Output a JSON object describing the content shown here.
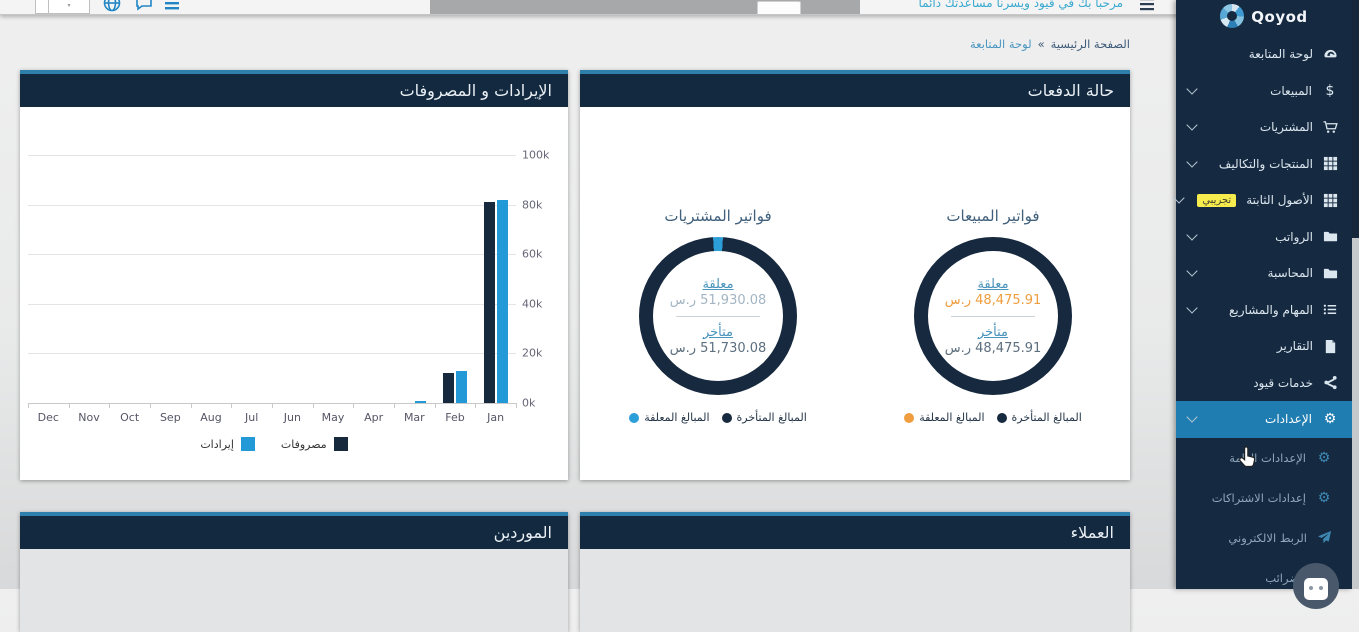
{
  "topbar": {
    "greeting": "مرحبا بك في قيود ويسرنا مساعدتك دائما"
  },
  "breadcrumb": {
    "home": "الصفحة الرئيسية",
    "separator": "»",
    "current": "لوحة المتابعة"
  },
  "sidebar": {
    "brand": "Qoyod",
    "items": [
      {
        "label": "لوحة المتابعة"
      },
      {
        "label": "المبيعات"
      },
      {
        "label": "المشتريات"
      },
      {
        "label": "المنتجات والتكاليف"
      },
      {
        "label": "الأصول الثابتة",
        "badge": "تجريبي"
      },
      {
        "label": "الرواتب"
      },
      {
        "label": "المحاسبة"
      },
      {
        "label": "المهام والمشاريع"
      },
      {
        "label": "التقارير"
      },
      {
        "label": "خدمات قيود"
      },
      {
        "label": "الإعدادات",
        "active": true
      },
      {
        "label": "الإعدادات العامة",
        "sub": true
      },
      {
        "label": "إعدادات الاشتراكات",
        "sub": true
      },
      {
        "label": "الربط الالكتروني",
        "sub": true
      },
      {
        "label": "الضرائب",
        "sub": true
      }
    ]
  },
  "panels": {
    "revenue_expenses": {
      "title": "الإيرادات و المصروفات"
    },
    "payments": {
      "title": "حالة الدفعات",
      "groups": [
        {
          "title": "فواتير المبيعات",
          "pending_label": "معلقة",
          "pending_value": "48,475.91 ر.س",
          "pending_value_color": "#ef9d3e",
          "overdue_label": "متأخر",
          "overdue_value": "48,475.91 ر.س",
          "overdue_value_color": "#5d6f7e",
          "ring": [
            {
              "color": "#17293e",
              "frac": 1
            }
          ],
          "legend": [
            {
              "label": "المبالغ المعلقة",
              "color": "#ef9d3e"
            },
            {
              "label": "المبالغ المتأخرة",
              "color": "#17293e"
            }
          ]
        },
        {
          "title": "فواتير المشتريات",
          "pending_label": "معلقة",
          "pending_value": "51,930.08 ر.س",
          "pending_value_color": "#a3b5c2",
          "overdue_label": "متأخر",
          "overdue_value": "51,730.08 ر.س",
          "overdue_value_color": "#5d6f7e",
          "ring": [
            {
              "color": "#2d9fd8",
              "frac": 0.02
            },
            {
              "color": "#17293e",
              "frac": 0.98
            }
          ],
          "legend": [
            {
              "label": "المبالغ المعلقة",
              "color": "#2d9fd8"
            },
            {
              "label": "المبالغ المتأخرة",
              "color": "#17293e"
            }
          ]
        }
      ]
    },
    "customers": {
      "title": "العملاء"
    },
    "suppliers": {
      "title": "الموردين"
    }
  },
  "chart_data": {
    "type": "bar",
    "title": "الإيرادات و المصروفات",
    "categories": [
      "Dec",
      "Nov",
      "Oct",
      "Sep",
      "Aug",
      "Jul",
      "Jun",
      "May",
      "Apr",
      "Mar",
      "Feb",
      "Jan"
    ],
    "series": [
      {
        "name": "مصروفات",
        "color": "#16293d",
        "values": [
          0,
          0,
          0,
          0,
          0,
          0,
          0,
          0,
          0,
          0,
          12000,
          81000
        ]
      },
      {
        "name": "إيرادات",
        "color": "#2399d8",
        "values": [
          0,
          0,
          0,
          0,
          0,
          0,
          0,
          0,
          0,
          1000,
          13000,
          82000
        ]
      }
    ],
    "ylim": [
      0,
      100000
    ],
    "yticks": [
      "0k",
      "20k",
      "40k",
      "60k",
      "80k",
      "100k"
    ],
    "legend": [
      {
        "label": "إيرادات",
        "color": "#2399d8"
      },
      {
        "label": "مصروفات",
        "color": "#16293d"
      }
    ],
    "grid": true,
    "legend_position": "bottom"
  }
}
